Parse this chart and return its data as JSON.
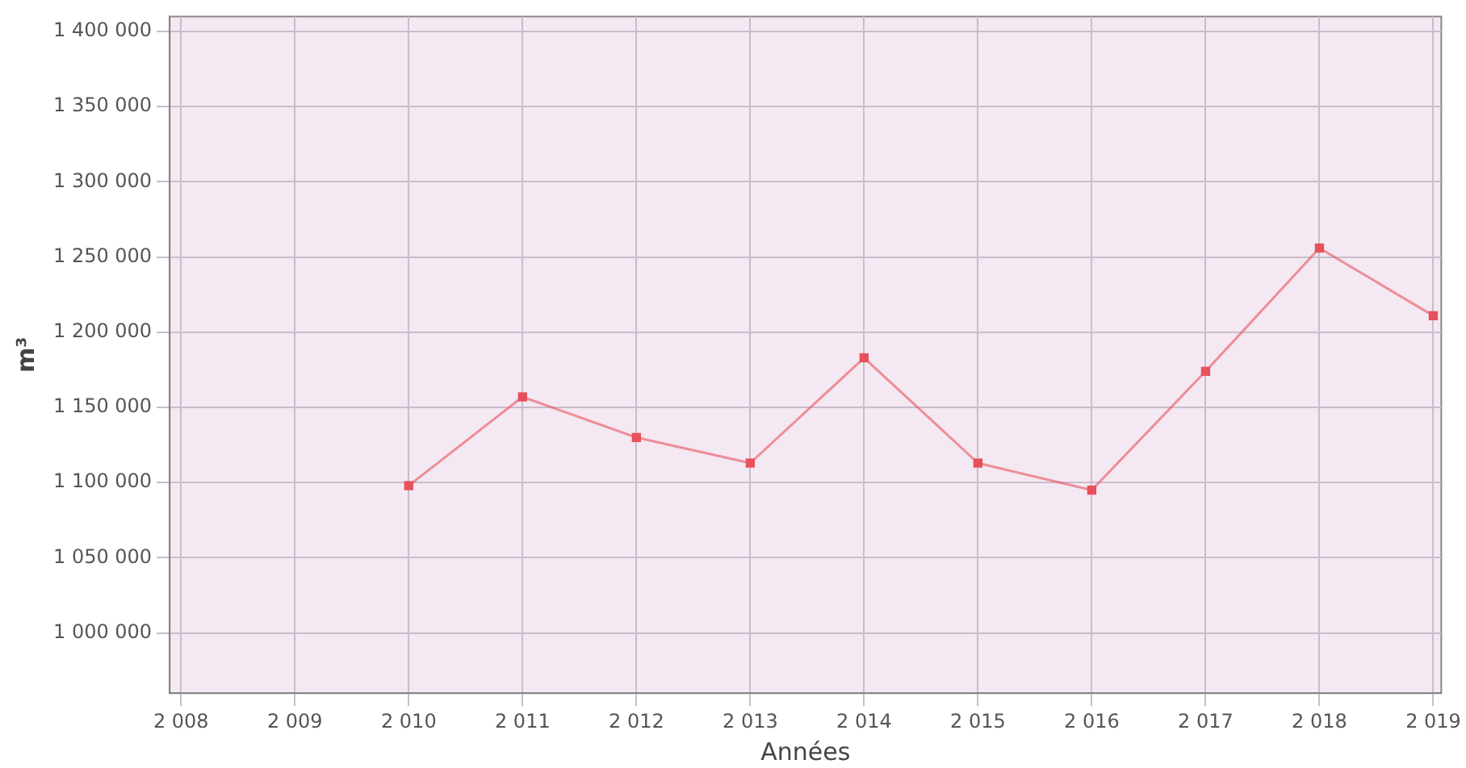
{
  "chart_data": {
    "type": "line",
    "xlabel": "Années",
    "ylabel": "m³",
    "x": [
      2010,
      2011,
      2012,
      2013,
      2014,
      2015,
      2016,
      2017,
      2018,
      2019
    ],
    "series": [
      {
        "color": "#e8505b",
        "values": [
          1098000,
          1157000,
          1130000,
          1113000,
          1183000,
          1113000,
          1095000,
          1174000,
          1256000,
          1211000
        ]
      }
    ],
    "xlim": [
      2007.9,
      2019.07
    ],
    "xticks": [
      {
        "value": 2008,
        "label": "2 008"
      },
      {
        "value": 2009,
        "label": "2 009"
      },
      {
        "value": 2010,
        "label": "2 010"
      },
      {
        "value": 2011,
        "label": "2 011"
      },
      {
        "value": 2012,
        "label": "2 012"
      },
      {
        "value": 2013,
        "label": "2 013"
      },
      {
        "value": 2014,
        "label": "2 014"
      },
      {
        "value": 2015,
        "label": "2 015"
      },
      {
        "value": 2016,
        "label": "2 016"
      },
      {
        "value": 2017,
        "label": "2 017"
      },
      {
        "value": 2018,
        "label": "2 018"
      },
      {
        "value": 2019,
        "label": "2 019"
      }
    ],
    "ylim": [
      960000,
      1410000
    ],
    "yticks": [
      {
        "value": 1000000,
        "label": "1 000 000"
      },
      {
        "value": 1050000,
        "label": "1 050 000"
      },
      {
        "value": 1100000,
        "label": "1 100 000"
      },
      {
        "value": 1150000,
        "label": "1 150 000"
      },
      {
        "value": 1200000,
        "label": "1 200 000"
      },
      {
        "value": 1250000,
        "label": "1 250 000"
      },
      {
        "value": 1300000,
        "label": "1 300 000"
      },
      {
        "value": 1350000,
        "label": "1 350 000"
      },
      {
        "value": 1400000,
        "label": "1 400 000"
      }
    ],
    "grid": true,
    "marker": "square",
    "line_style": "solid"
  }
}
